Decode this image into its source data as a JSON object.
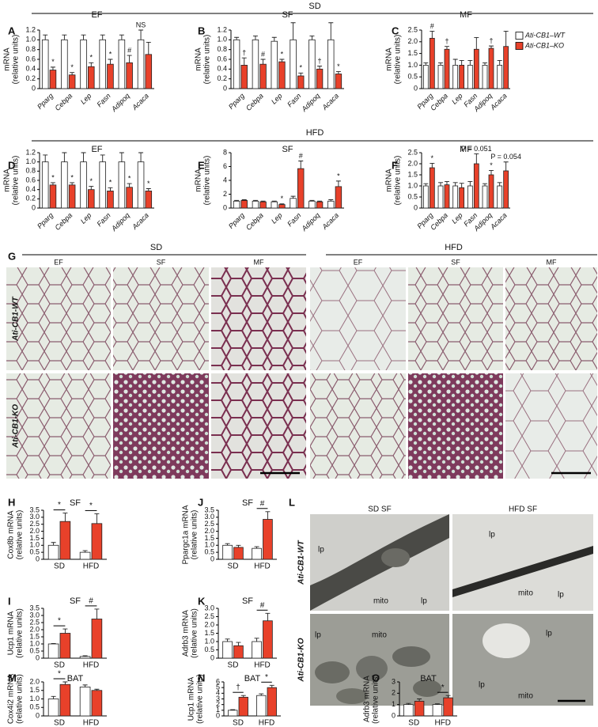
{
  "headers": {
    "sd": "SD",
    "hfd": "HFD"
  },
  "legend": [
    {
      "name": "Ati-CB1–WT",
      "color": "#ffffff"
    },
    {
      "name": "Ati-CB1–KO",
      "color": "#e8412a"
    }
  ],
  "chart_data": [
    {
      "panel": "A",
      "type": "bar",
      "title": "EF",
      "y_label": [
        "mRNA",
        "(relative units)"
      ],
      "categories": [
        "Pparg",
        "Cebpa",
        "Lep",
        "Fasn",
        "Adipoq",
        "Acaca"
      ],
      "ylim": [
        0,
        1.2
      ],
      "yticks": [
        0,
        0.2,
        0.4,
        0.6,
        0.8,
        {
          "value": 1,
          "label": "1.0"
        },
        1.2
      ],
      "series": [
        {
          "color": "#ffffff",
          "values": [
            1,
            1,
            1,
            1,
            1,
            1
          ],
          "errors": [
            0.1,
            0.1,
            0.1,
            0.1,
            0.1,
            0.2
          ],
          "markers": [
            null,
            null,
            null,
            null,
            null,
            "NS"
          ]
        },
        {
          "color": "#e8412a",
          "values": [
            0.38,
            0.28,
            0.45,
            0.5,
            0.53,
            0.7
          ],
          "errors": [
            0.06,
            0.05,
            0.08,
            0.1,
            0.15,
            0.25
          ],
          "markers": [
            "*",
            "*",
            "*",
            "*",
            "#",
            null
          ]
        }
      ]
    },
    {
      "panel": "B",
      "type": "bar",
      "title": "SF",
      "y_label": [
        "mRNA",
        "(relative units)"
      ],
      "categories": [
        "Pparg",
        "Cebpa",
        "Lep",
        "Fasn",
        "Adipoq",
        "Acaca"
      ],
      "ylim": [
        0,
        1.2
      ],
      "yticks": [
        0,
        0.2,
        0.4,
        0.6,
        0.8,
        {
          "value": 1,
          "label": "1.0"
        },
        1.2
      ],
      "series": [
        {
          "color": "#ffffff",
          "values": [
            1,
            1,
            0.97,
            1,
            1,
            1
          ],
          "errors": [
            0.05,
            0.08,
            0.08,
            0.35,
            0.08,
            0.35
          ],
          "markers": [
            null,
            null,
            null,
            null,
            null,
            null
          ]
        },
        {
          "color": "#e8412a",
          "values": [
            0.48,
            0.5,
            0.55,
            0.26,
            0.4,
            0.3
          ],
          "errors": [
            0.15,
            0.1,
            0.05,
            0.06,
            0.06,
            0.05
          ],
          "markers": [
            "†",
            "#",
            "*",
            "*",
            "†",
            "*"
          ]
        }
      ]
    },
    {
      "panel": "C",
      "type": "bar",
      "title": "MF",
      "y_label": [
        "mRNA",
        "(relative units)"
      ],
      "categories": [
        "Pparg",
        "Cebpa",
        "Lep",
        "Fasn",
        "Adipoq",
        "Acaca"
      ],
      "ylim": [
        0,
        2.5
      ],
      "yticks": [
        0,
        0.5,
        {
          "value": 1,
          "label": "1.0"
        },
        1.5,
        {
          "value": 2,
          "label": "2.0"
        },
        2.5
      ],
      "series": [
        {
          "color": "#ffffff",
          "values": [
            1,
            1,
            1,
            1,
            1,
            1
          ],
          "errors": [
            0.1,
            0.1,
            0.25,
            0.2,
            0.1,
            0.2
          ],
          "markers": [
            null,
            null,
            null,
            null,
            null,
            null
          ]
        },
        {
          "color": "#e8412a",
          "values": [
            2.15,
            1.68,
            1,
            1.68,
            1.72,
            1.8
          ],
          "errors": [
            0.3,
            0.12,
            0.2,
            0.5,
            0.1,
            0.65
          ],
          "markers": [
            "#",
            "†",
            null,
            null,
            "†",
            null
          ]
        }
      ]
    },
    {
      "panel": "D",
      "type": "bar",
      "title": "EF",
      "y_label": [
        "mRNA",
        "(relative units)"
      ],
      "categories": [
        "Pparg",
        "Cebpa",
        "Lep",
        "Fasn",
        "Adipoq",
        "Acaca"
      ],
      "ylim": [
        0,
        1.2
      ],
      "yticks": [
        0,
        0.2,
        0.4,
        0.6,
        0.8,
        {
          "value": 1,
          "label": "1.0"
        },
        1.2
      ],
      "series": [
        {
          "color": "#ffffff",
          "values": [
            1,
            1,
            1,
            1,
            1,
            1
          ],
          "errors": [
            0.15,
            0.2,
            0.2,
            0.15,
            0.2,
            0.2
          ],
          "markers": [
            null,
            null,
            null,
            null,
            null,
            null
          ]
        },
        {
          "color": "#e8412a",
          "values": [
            0.5,
            0.5,
            0.4,
            0.37,
            0.45,
            0.37
          ],
          "errors": [
            0.05,
            0.05,
            0.07,
            0.07,
            0.08,
            0.05
          ],
          "markers": [
            "*",
            "*",
            "*",
            "*",
            "*",
            "*"
          ]
        }
      ]
    },
    {
      "panel": "E",
      "type": "bar",
      "title": "SF",
      "y_label": [
        "mRNA",
        "(relative units)"
      ],
      "categories": [
        "Pparg",
        "Cebpa",
        "Lep",
        "Fasn",
        "Adipoq",
        "Acaca"
      ],
      "ylim": [
        0,
        8
      ],
      "yticks": [
        0,
        2,
        4,
        6,
        8
      ],
      "series": [
        {
          "color": "#ffffff",
          "values": [
            1,
            1,
            0.9,
            1.4,
            1,
            1
          ],
          "errors": [
            0.1,
            0.1,
            0.1,
            0.3,
            0.1,
            0.2
          ],
          "markers": [
            null,
            null,
            null,
            null,
            null,
            null
          ]
        },
        {
          "color": "#e8412a",
          "values": [
            1.1,
            0.9,
            0.5,
            5.7,
            0.9,
            3.1
          ],
          "errors": [
            0.1,
            0.1,
            0.1,
            1.1,
            0.1,
            0.8
          ],
          "markers": [
            null,
            null,
            "*",
            "#",
            null,
            "*"
          ]
        }
      ]
    },
    {
      "panel": "F",
      "type": "bar",
      "title": "MF",
      "y_label": [
        "mRNA",
        "(relative units)"
      ],
      "categories": [
        "Pparg",
        "Cebpa",
        "Lep",
        "Fasn",
        "Adipoq",
        "Acaca"
      ],
      "ylim": [
        0,
        2.5
      ],
      "yticks": [
        0,
        0.5,
        {
          "value": 1,
          "label": "1.0"
        },
        1.5,
        {
          "value": 2,
          "label": "2.0"
        },
        2.5
      ],
      "series": [
        {
          "color": "#ffffff",
          "values": [
            1,
            1,
            1,
            1,
            1,
            1
          ],
          "errors": [
            0.1,
            0.15,
            0.15,
            0.2,
            0.1,
            0.15
          ],
          "markers": [
            null,
            null,
            null,
            null,
            null,
            null
          ]
        },
        {
          "color": "#e8412a",
          "values": [
            1.82,
            1.05,
            0.92,
            2,
            1.5,
            1.68
          ],
          "errors": [
            0.2,
            0.15,
            0.2,
            0.45,
            0.2,
            0.4
          ],
          "markers": [
            "*",
            null,
            null,
            "P = 0.051",
            "*",
            "P = 0.054"
          ]
        }
      ]
    },
    {
      "panel": "H",
      "type": "bar",
      "title": "SF",
      "y_label": [
        "Cox8b mRNA",
        "(relative units)"
      ],
      "categories": [
        "SD",
        "HFD"
      ],
      "ylim": [
        0,
        3.5
      ],
      "yticks": [
        0,
        0.5,
        {
          "value": 1,
          "label": "1.0"
        },
        1.5,
        {
          "value": 2,
          "label": "2.0"
        },
        2.5,
        {
          "value": 3,
          "label": "3.0"
        },
        3.5
      ],
      "series": [
        {
          "color": "#ffffff",
          "values": [
            1,
            0.5
          ],
          "errors": [
            0.2,
            0.12
          ]
        },
        {
          "color": "#e8412a",
          "values": [
            2.7,
            2.55
          ],
          "errors": [
            0.6,
            0.7
          ]
        }
      ],
      "group_markers": [
        "*",
        "*"
      ]
    },
    {
      "panel": "J",
      "type": "bar",
      "title": "SF",
      "y_label": [
        "Ppargc1a mRNA",
        "(relative units)"
      ],
      "categories": [
        "SD",
        "HFD"
      ],
      "ylim": [
        0,
        3.5
      ],
      "yticks": [
        0,
        0.5,
        {
          "value": 1,
          "label": "1.0"
        },
        1.5,
        {
          "value": 2,
          "label": "2.0"
        },
        2.5,
        {
          "value": 3,
          "label": "3.0"
        },
        3.5
      ],
      "series": [
        {
          "color": "#ffffff",
          "values": [
            1,
            0.78
          ],
          "errors": [
            0.12,
            0.12
          ]
        },
        {
          "color": "#e8412a",
          "values": [
            0.85,
            2.85
          ],
          "errors": [
            0.15,
            0.55
          ]
        }
      ],
      "group_markers": [
        null,
        "#"
      ]
    },
    {
      "panel": "I",
      "type": "bar",
      "title": "SF",
      "y_label": [
        "Ucp1 mRNA",
        "(relative units)"
      ],
      "categories": [
        "SD",
        "HFD"
      ],
      "ylim": [
        0,
        3.5
      ],
      "yticks": [
        0,
        0.5,
        {
          "value": 1,
          "label": "1.0"
        },
        1.5,
        {
          "value": 2,
          "label": "2.0"
        },
        2.5,
        {
          "value": 3,
          "label": "3.0"
        },
        3.5
      ],
      "series": [
        {
          "color": "#ffffff",
          "values": [
            1,
            0.12
          ],
          "errors": [
            0.03,
            0.05
          ]
        },
        {
          "color": "#e8412a",
          "values": [
            1.75,
            2.75
          ],
          "errors": [
            0.3,
            0.7
          ]
        }
      ],
      "group_markers": [
        "*",
        "#"
      ]
    },
    {
      "panel": "K",
      "type": "bar",
      "title": "SF",
      "y_label": [
        "Adrb3 mRNA",
        "(relative units)"
      ],
      "categories": [
        "SD",
        "HFD"
      ],
      "ylim": [
        0,
        3
      ],
      "yticks": [
        0,
        0.5,
        {
          "value": 1,
          "label": "1.0"
        },
        1.5,
        {
          "value": 2,
          "label": "2.0"
        },
        2.5,
        {
          "value": 3,
          "label": "3.0"
        }
      ],
      "series": [
        {
          "color": "#ffffff",
          "values": [
            1,
            1
          ],
          "errors": [
            0.15,
            0.2
          ]
        },
        {
          "color": "#e8412a",
          "values": [
            0.75,
            2.25
          ],
          "errors": [
            0.2,
            0.45
          ]
        }
      ],
      "group_markers": [
        null,
        "#"
      ]
    },
    {
      "panel": "M",
      "type": "bar",
      "title": "BAT",
      "y_label": [
        "Cox4i2 mRNA",
        "(relative units)"
      ],
      "categories": [
        "SD",
        "HFD"
      ],
      "ylim": [
        0,
        2
      ],
      "yticks": [
        0,
        0.5,
        {
          "value": 1,
          "label": "1.0"
        },
        1.5,
        {
          "value": 2,
          "label": "2.0"
        }
      ],
      "series": [
        {
          "color": "#ffffff",
          "values": [
            1,
            1.7
          ],
          "errors": [
            0.15,
            0.12
          ]
        },
        {
          "color": "#e8412a",
          "values": [
            1.85,
            1.5
          ],
          "errors": [
            0.15,
            0.07
          ]
        }
      ],
      "group_markers": [
        "*",
        null
      ]
    },
    {
      "panel": "N",
      "type": "bar",
      "title": "BAT",
      "y_label": [
        "Ucp1 mRNA",
        "(relative units)"
      ],
      "categories": [
        "SD",
        "HFD"
      ],
      "ylim": [
        0,
        6
      ],
      "yticks": [
        0,
        1,
        2,
        3,
        4,
        5,
        6
      ],
      "series": [
        {
          "color": "#ffffff",
          "values": [
            1,
            3.6
          ],
          "errors": [
            0.1,
            0.3
          ]
        },
        {
          "color": "#e8412a",
          "values": [
            3.3,
            5
          ],
          "errors": [
            0.3,
            0.4
          ]
        }
      ],
      "group_markers": [
        "†",
        "*"
      ]
    },
    {
      "panel": "O",
      "type": "bar",
      "title": "BAT",
      "y_label": [
        "Adrb3 mRNA",
        "(relative units)"
      ],
      "categories": [
        "SD",
        "HFD"
      ],
      "ylim": [
        0,
        3
      ],
      "yticks": [
        0,
        1,
        2,
        3
      ],
      "series": [
        {
          "color": "#ffffff",
          "values": [
            1,
            1
          ],
          "errors": [
            0.1,
            0.07
          ]
        },
        {
          "color": "#e8412a",
          "values": [
            1.3,
            1.6
          ],
          "errors": [
            0.2,
            0.2
          ]
        }
      ],
      "group_markers": [
        null,
        "*"
      ]
    }
  ],
  "histology": {
    "panel": "G",
    "groups": [
      {
        "title": "SD",
        "columns": [
          "EF",
          "SF",
          "MF"
        ]
      },
      {
        "title": "HFD",
        "columns": [
          "EF",
          "SF",
          "MF"
        ]
      }
    ],
    "rows": [
      "Ati-CB1-WT",
      "Ati-CB1-KO"
    ]
  },
  "em": {
    "panel": "L",
    "columns": [
      "SD SF",
      "HFD SF"
    ],
    "rows": [
      "Ati-CB1-WT",
      "Ati-CB1-KO"
    ],
    "images": [
      [
        "lp",
        "mito",
        "lp"
      ],
      [
        "lp",
        "mito",
        "lp"
      ],
      [
        "lp",
        "mito"
      ],
      [
        "lp",
        "lp",
        "mito"
      ]
    ]
  }
}
